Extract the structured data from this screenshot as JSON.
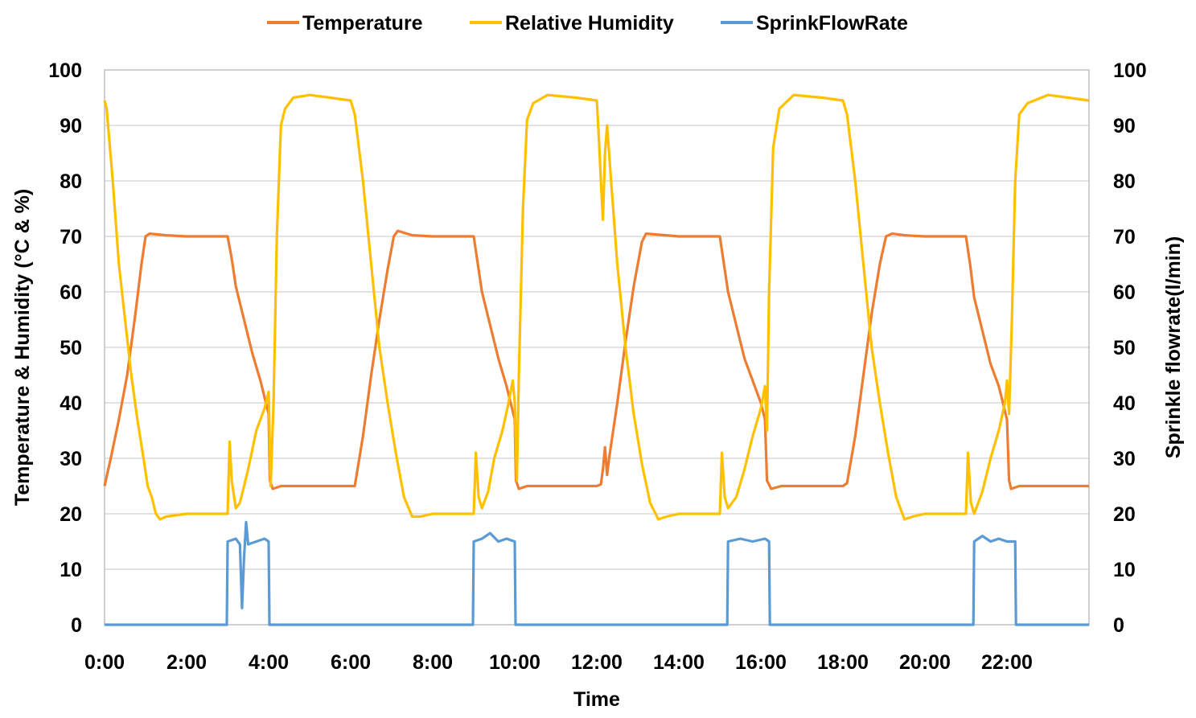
{
  "chart_data": {
    "type": "line",
    "xlabel": "Time",
    "ylabel_left": "Temperature & Humidity (°C & %)",
    "ylabel_right": "Sprinkle flowrate(l/min)",
    "x_unit": "hours",
    "xlim": [
      0,
      24
    ],
    "ylim_left": [
      0,
      100
    ],
    "ylim_right": [
      0,
      100
    ],
    "x_ticks": [
      {
        "value": 0,
        "label": "0:00"
      },
      {
        "value": 2,
        "label": "2:00"
      },
      {
        "value": 4,
        "label": "4:00"
      },
      {
        "value": 6,
        "label": "6:00"
      },
      {
        "value": 8,
        "label": "8:00"
      },
      {
        "value": 10,
        "label": "10:00"
      },
      {
        "value": 12,
        "label": "12:00"
      },
      {
        "value": 14,
        "label": "14:00"
      },
      {
        "value": 16,
        "label": "16:00"
      },
      {
        "value": 18,
        "label": "18:00"
      },
      {
        "value": 20,
        "label": "20:00"
      },
      {
        "value": 22,
        "label": "22:00"
      }
    ],
    "y_ticks_left": [
      "0",
      "10",
      "20",
      "30",
      "40",
      "50",
      "60",
      "70",
      "80",
      "90",
      "100"
    ],
    "y_ticks_right": [
      "0",
      "10",
      "20",
      "30",
      "40",
      "50",
      "60",
      "70",
      "80",
      "90",
      "100"
    ],
    "grid": "horizontal",
    "legend": "top",
    "series": [
      {
        "name": "Temperature",
        "axis": "left",
        "color": "#ED7D31",
        "points": [
          [
            0.0,
            25.0
          ],
          [
            0.15,
            30
          ],
          [
            0.35,
            37
          ],
          [
            0.55,
            45
          ],
          [
            0.75,
            56
          ],
          [
            0.9,
            65
          ],
          [
            1.0,
            70.0
          ],
          [
            1.1,
            70.5
          ],
          [
            1.5,
            70.2
          ],
          [
            2.0,
            70.0
          ],
          [
            2.5,
            70.0
          ],
          [
            3.0,
            70.0
          ],
          [
            3.1,
            66
          ],
          [
            3.2,
            61
          ],
          [
            3.4,
            55
          ],
          [
            3.6,
            49
          ],
          [
            3.8,
            44
          ],
          [
            4.0,
            38
          ],
          [
            4.03,
            26
          ],
          [
            4.1,
            24.5
          ],
          [
            4.3,
            25.0
          ],
          [
            5.0,
            25.0
          ],
          [
            6.0,
            25.0
          ],
          [
            6.1,
            25.0
          ],
          [
            6.3,
            34
          ],
          [
            6.5,
            45
          ],
          [
            6.7,
            55
          ],
          [
            6.9,
            64
          ],
          [
            7.05,
            70.0
          ],
          [
            7.15,
            71.0
          ],
          [
            7.5,
            70.2
          ],
          [
            8.0,
            70.0
          ],
          [
            8.5,
            70.0
          ],
          [
            9.0,
            70.0
          ],
          [
            9.1,
            65
          ],
          [
            9.2,
            60
          ],
          [
            9.4,
            54
          ],
          [
            9.6,
            48
          ],
          [
            9.8,
            43
          ],
          [
            10.0,
            37
          ],
          [
            10.03,
            26
          ],
          [
            10.1,
            24.5
          ],
          [
            10.3,
            25.0
          ],
          [
            11.0,
            25.0
          ],
          [
            12.0,
            25.0
          ],
          [
            12.1,
            25.3
          ],
          [
            12.15,
            28
          ],
          [
            12.2,
            32
          ],
          [
            12.25,
            27
          ],
          [
            12.3,
            30
          ],
          [
            12.5,
            40
          ],
          [
            12.7,
            51
          ],
          [
            12.9,
            61
          ],
          [
            13.1,
            69
          ],
          [
            13.2,
            70.5
          ],
          [
            13.5,
            70.3
          ],
          [
            14.0,
            70.0
          ],
          [
            14.5,
            70.0
          ],
          [
            15.0,
            70.0
          ],
          [
            15.1,
            65
          ],
          [
            15.2,
            60
          ],
          [
            15.4,
            54
          ],
          [
            15.6,
            48
          ],
          [
            15.8,
            44
          ],
          [
            16.0,
            40
          ],
          [
            16.1,
            37
          ],
          [
            16.15,
            26
          ],
          [
            16.25,
            24.5
          ],
          [
            16.5,
            25.0
          ],
          [
            17.0,
            25.0
          ],
          [
            18.0,
            25.0
          ],
          [
            18.1,
            25.5
          ],
          [
            18.3,
            34
          ],
          [
            18.5,
            45
          ],
          [
            18.7,
            56
          ],
          [
            18.9,
            65
          ],
          [
            19.05,
            70.0
          ],
          [
            19.2,
            70.5
          ],
          [
            19.5,
            70.2
          ],
          [
            20.0,
            70.0
          ],
          [
            20.5,
            70.0
          ],
          [
            21.0,
            70.0
          ],
          [
            21.1,
            65
          ],
          [
            21.2,
            59
          ],
          [
            21.4,
            53
          ],
          [
            21.6,
            47
          ],
          [
            21.8,
            43
          ],
          [
            22.0,
            37
          ],
          [
            22.05,
            26
          ],
          [
            22.1,
            24.5
          ],
          [
            22.3,
            25.0
          ],
          [
            23.0,
            25.0
          ],
          [
            24.0,
            25.0
          ]
        ]
      },
      {
        "name": "Relative Humidity",
        "axis": "left",
        "color": "#FFC000",
        "points": [
          [
            0.0,
            94.5
          ],
          [
            0.05,
            93
          ],
          [
            0.2,
            80
          ],
          [
            0.35,
            65
          ],
          [
            0.5,
            55
          ],
          [
            0.65,
            45
          ],
          [
            0.8,
            37
          ],
          [
            0.95,
            30
          ],
          [
            1.05,
            25
          ],
          [
            1.15,
            23
          ],
          [
            1.25,
            20
          ],
          [
            1.35,
            19
          ],
          [
            1.5,
            19.5
          ],
          [
            2.0,
            20.0
          ],
          [
            2.5,
            20.0
          ],
          [
            3.0,
            20.0
          ],
          [
            3.05,
            33
          ],
          [
            3.1,
            26
          ],
          [
            3.2,
            21
          ],
          [
            3.3,
            22
          ],
          [
            3.5,
            28
          ],
          [
            3.7,
            35
          ],
          [
            3.9,
            39
          ],
          [
            4.0,
            42
          ],
          [
            4.05,
            25
          ],
          [
            4.12,
            40
          ],
          [
            4.2,
            70
          ],
          [
            4.3,
            90
          ],
          [
            4.4,
            93
          ],
          [
            4.6,
            95
          ],
          [
            5.0,
            95.5
          ],
          [
            5.5,
            95.0
          ],
          [
            6.0,
            94.5
          ],
          [
            6.1,
            92
          ],
          [
            6.3,
            80
          ],
          [
            6.5,
            65
          ],
          [
            6.7,
            50
          ],
          [
            6.9,
            40
          ],
          [
            7.1,
            31
          ],
          [
            7.3,
            23
          ],
          [
            7.5,
            19.5
          ],
          [
            7.7,
            19.5
          ],
          [
            8.0,
            20.0
          ],
          [
            8.5,
            20.0
          ],
          [
            9.0,
            20.0
          ],
          [
            9.05,
            31
          ],
          [
            9.12,
            23
          ],
          [
            9.2,
            21
          ],
          [
            9.35,
            24
          ],
          [
            9.5,
            30
          ],
          [
            9.7,
            35
          ],
          [
            9.85,
            40
          ],
          [
            9.95,
            44
          ],
          [
            10.0,
            40
          ],
          [
            10.05,
            26
          ],
          [
            10.1,
            45
          ],
          [
            10.2,
            75
          ],
          [
            10.3,
            91
          ],
          [
            10.45,
            94
          ],
          [
            10.8,
            95.5
          ],
          [
            11.5,
            95.0
          ],
          [
            12.0,
            94.5
          ],
          [
            12.05,
            88
          ],
          [
            12.1,
            80
          ],
          [
            12.15,
            73
          ],
          [
            12.2,
            85
          ],
          [
            12.25,
            90
          ],
          [
            12.35,
            80
          ],
          [
            12.5,
            65
          ],
          [
            12.7,
            50
          ],
          [
            12.9,
            38
          ],
          [
            13.1,
            29
          ],
          [
            13.3,
            22
          ],
          [
            13.5,
            19
          ],
          [
            13.7,
            19.5
          ],
          [
            14.0,
            20.0
          ],
          [
            14.5,
            20.0
          ],
          [
            15.0,
            20.0
          ],
          [
            15.05,
            31
          ],
          [
            15.12,
            23
          ],
          [
            15.2,
            21
          ],
          [
            15.4,
            23
          ],
          [
            15.6,
            28
          ],
          [
            15.8,
            34
          ],
          [
            16.0,
            39
          ],
          [
            16.1,
            43
          ],
          [
            16.15,
            35
          ],
          [
            16.2,
            60
          ],
          [
            16.3,
            86
          ],
          [
            16.45,
            93
          ],
          [
            16.8,
            95.5
          ],
          [
            17.5,
            95.0
          ],
          [
            18.0,
            94.5
          ],
          [
            18.1,
            92
          ],
          [
            18.3,
            80
          ],
          [
            18.5,
            65
          ],
          [
            18.7,
            50
          ],
          [
            18.9,
            40
          ],
          [
            19.1,
            31
          ],
          [
            19.3,
            23
          ],
          [
            19.5,
            19
          ],
          [
            19.7,
            19.5
          ],
          [
            20.0,
            20.0
          ],
          [
            20.5,
            20.0
          ],
          [
            21.0,
            20.0
          ],
          [
            21.05,
            31
          ],
          [
            21.12,
            22
          ],
          [
            21.2,
            20
          ],
          [
            21.4,
            24
          ],
          [
            21.6,
            30
          ],
          [
            21.8,
            35
          ],
          [
            21.95,
            40
          ],
          [
            22.0,
            44
          ],
          [
            22.05,
            38
          ],
          [
            22.12,
            55
          ],
          [
            22.2,
            80
          ],
          [
            22.3,
            92
          ],
          [
            22.5,
            94
          ],
          [
            23.0,
            95.5
          ],
          [
            23.5,
            95.0
          ],
          [
            24.0,
            94.5
          ]
        ]
      },
      {
        "name": "SprinkFlowRate",
        "axis": "right",
        "color": "#5B9BD5",
        "points": [
          [
            0.0,
            0
          ],
          [
            2.98,
            0
          ],
          [
            3.0,
            15
          ],
          [
            3.2,
            15.5
          ],
          [
            3.3,
            14.5
          ],
          [
            3.35,
            3
          ],
          [
            3.4,
            12
          ],
          [
            3.45,
            18.5
          ],
          [
            3.5,
            14.5
          ],
          [
            3.7,
            15
          ],
          [
            3.9,
            15.5
          ],
          [
            4.0,
            15
          ],
          [
            4.02,
            0
          ],
          [
            8.98,
            0
          ],
          [
            9.0,
            15
          ],
          [
            9.2,
            15.5
          ],
          [
            9.4,
            16.5
          ],
          [
            9.6,
            15
          ],
          [
            9.8,
            15.5
          ],
          [
            10.0,
            15
          ],
          [
            10.02,
            0
          ],
          [
            15.18,
            0
          ],
          [
            15.2,
            15
          ],
          [
            15.5,
            15.5
          ],
          [
            15.8,
            15
          ],
          [
            16.1,
            15.5
          ],
          [
            16.2,
            15
          ],
          [
            16.22,
            0
          ],
          [
            21.18,
            0
          ],
          [
            21.2,
            15
          ],
          [
            21.4,
            16
          ],
          [
            21.6,
            15
          ],
          [
            21.8,
            15.5
          ],
          [
            22.0,
            15
          ],
          [
            22.2,
            15
          ],
          [
            22.22,
            0
          ],
          [
            24.0,
            0
          ]
        ]
      }
    ]
  }
}
